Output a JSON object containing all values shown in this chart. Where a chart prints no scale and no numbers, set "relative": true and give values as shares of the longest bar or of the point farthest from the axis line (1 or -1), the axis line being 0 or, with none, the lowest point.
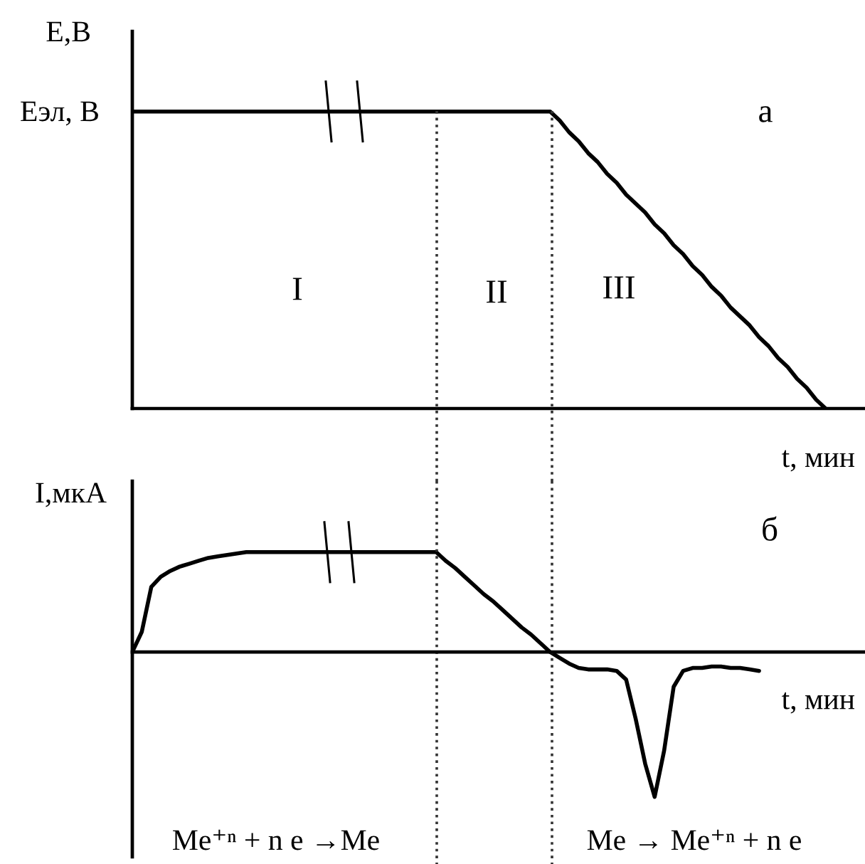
{
  "chart_data": [
    {
      "type": "line",
      "title": "а",
      "xlabel": "t, мин",
      "ylabel": "E,В",
      "relative": true,
      "categories": [
        null,
        null,
        null,
        null,
        null,
        null,
        null,
        null,
        null,
        null,
        null,
        null,
        null,
        null,
        null,
        null,
        null,
        null,
        null,
        null,
        null,
        null,
        null,
        null,
        null,
        null,
        null,
        null,
        null,
        null,
        null,
        null,
        null,
        null,
        null,
        null,
        null,
        null,
        null,
        null,
        null,
        null,
        null,
        null,
        null,
        null,
        null,
        null,
        null,
        null,
        null,
        null,
        null,
        null,
        null,
        null,
        null,
        null,
        null,
        null,
        null,
        null,
        null,
        null,
        null,
        null,
        null,
        null,
        null,
        null,
        null,
        null,
        null,
        null,
        null,
        null,
        null,
        null
      ],
      "series": [
        {
          "color": "#000000",
          "values": [
            1,
            1,
            1,
            1,
            1,
            1,
            1,
            1,
            1,
            1,
            1,
            1,
            1,
            1,
            1,
            1,
            1,
            1,
            1,
            1,
            1,
            1,
            1,
            1,
            1,
            1,
            1,
            1,
            1,
            1,
            1,
            1,
            1,
            1,
            1,
            1,
            1,
            1,
            1,
            1,
            1,
            1,
            1,
            1,
            1,
            0.97,
            0.93,
            0.9,
            0.86,
            0.83,
            0.79,
            0.76,
            0.72,
            0.69,
            0.66,
            0.62,
            0.59,
            0.55,
            0.52,
            0.48,
            0.45,
            0.41,
            0.38,
            0.34,
            0.31,
            0.28,
            0.24,
            0.21,
            0.17,
            0.14,
            0.1,
            0.07,
            0.03,
            0,
            null,
            null,
            null,
            null
          ]
        }
      ],
      "annotations": [
        "Eэл, В",
        "I",
        "II",
        "III"
      ]
    },
    {
      "type": "line",
      "title": "б",
      "xlabel": "t, мин",
      "ylabel": "I,мкА",
      "relative": true,
      "categories": [
        null,
        null,
        null,
        null,
        null,
        null,
        null,
        null,
        null,
        null,
        null,
        null,
        null,
        null,
        null,
        null,
        null,
        null,
        null,
        null,
        null,
        null,
        null,
        null,
        null,
        null,
        null,
        null,
        null,
        null,
        null,
        null,
        null,
        null,
        null,
        null,
        null,
        null,
        null,
        null,
        null,
        null,
        null,
        null,
        null,
        null,
        null,
        null,
        null,
        null,
        null,
        null,
        null,
        null,
        null,
        null,
        null,
        null,
        null,
        null,
        null,
        null,
        null,
        null,
        null,
        null,
        null,
        null,
        null,
        null,
        null,
        null,
        null,
        null,
        null,
        null,
        null,
        null
      ],
      "series": [
        {
          "color": "#000000",
          "values": [
            0,
            0.14,
            0.45,
            0.52,
            0.56,
            0.59,
            0.61,
            0.63,
            0.65,
            0.66,
            0.67,
            0.68,
            0.69,
            0.69,
            0.69,
            0.69,
            0.69,
            0.69,
            0.69,
            0.69,
            0.69,
            0.69,
            0.69,
            0.69,
            0.69,
            0.69,
            0.69,
            0.69,
            0.69,
            0.69,
            0.69,
            0.69,
            0.69,
            0.63,
            0.58,
            0.52,
            0.46,
            0.4,
            0.35,
            0.29,
            0.23,
            0.17,
            0.12,
            0.06,
            0,
            -0.04,
            -0.08,
            -0.11,
            -0.12,
            -0.12,
            -0.12,
            -0.13,
            -0.19,
            -0.46,
            -0.77,
            -1,
            -0.68,
            -0.24,
            -0.13,
            -0.11,
            -0.11,
            -0.1,
            -0.1,
            -0.11,
            -0.11,
            -0.12,
            -0.13,
            null,
            null,
            null,
            null,
            null,
            null,
            null,
            null,
            null,
            null,
            null
          ]
        }
      ],
      "annotations": [
        "Me⁺ⁿ + n e →Me",
        "Me → Me⁺ⁿ + n e"
      ]
    }
  ]
}
